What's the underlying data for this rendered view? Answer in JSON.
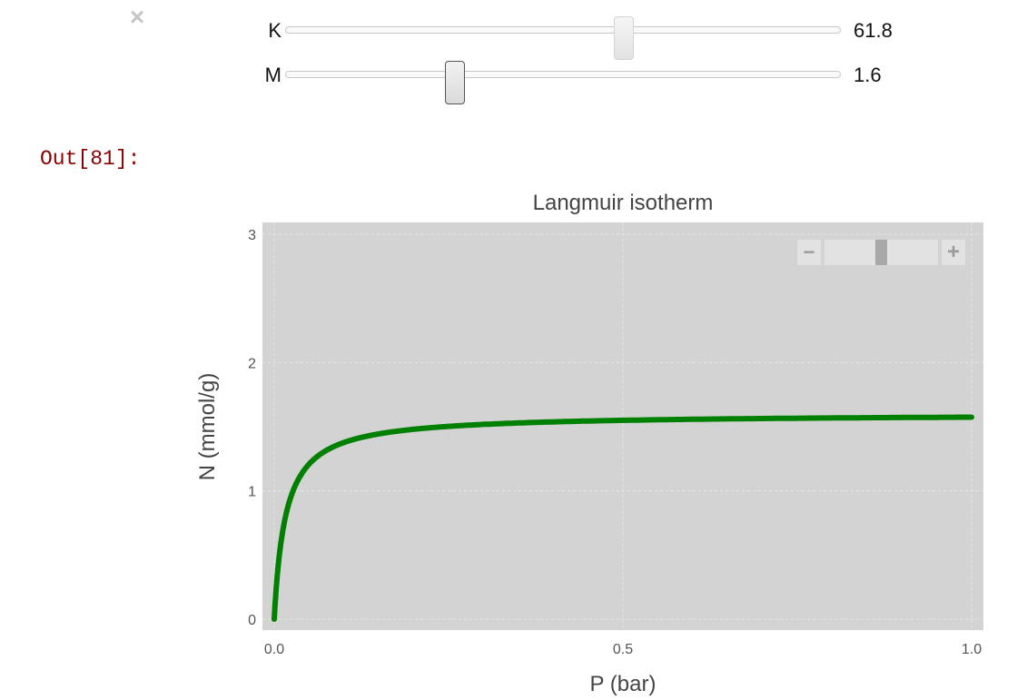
{
  "widgets": {
    "close_icon": "×",
    "sliders": [
      {
        "label": "K",
        "value": "61.8",
        "fraction": 0.61
      },
      {
        "label": "M",
        "value": "1.6",
        "fraction": 0.305
      }
    ]
  },
  "output": {
    "prompt": "Out[81]:"
  },
  "chart_data": {
    "type": "line",
    "title": "Langmuir isotherm",
    "xlabel": "P (bar)",
    "ylabel": "N (mmol/g)",
    "xlim": [
      0.0,
      1.0
    ],
    "ylim": [
      0,
      3
    ],
    "xticks": [
      "0.0",
      "0.5",
      "1.0"
    ],
    "yticks": [
      "0",
      "1",
      "2",
      "3"
    ],
    "grid": true,
    "zoom_control": {
      "minus": "−",
      "plus": "+",
      "level": 0.5
    },
    "series": [
      {
        "color": "#008000",
        "model": "N = M*K*P/(1+K*P)",
        "params": {
          "K": 61.8,
          "M": 1.6
        },
        "x": [
          0,
          0.005,
          0.01,
          0.02,
          0.03,
          0.04,
          0.05,
          0.07,
          0.1,
          0.15,
          0.2,
          0.3,
          0.4,
          0.5,
          0.6,
          0.7,
          0.8,
          0.9,
          1.0
        ],
        "y": [
          0,
          0.377,
          0.611,
          0.883,
          1.037,
          1.137,
          1.206,
          1.297,
          1.377,
          1.442,
          1.478,
          1.517,
          1.537,
          1.551,
          1.56,
          1.566,
          1.571,
          1.575,
          1.578
        ]
      }
    ]
  }
}
